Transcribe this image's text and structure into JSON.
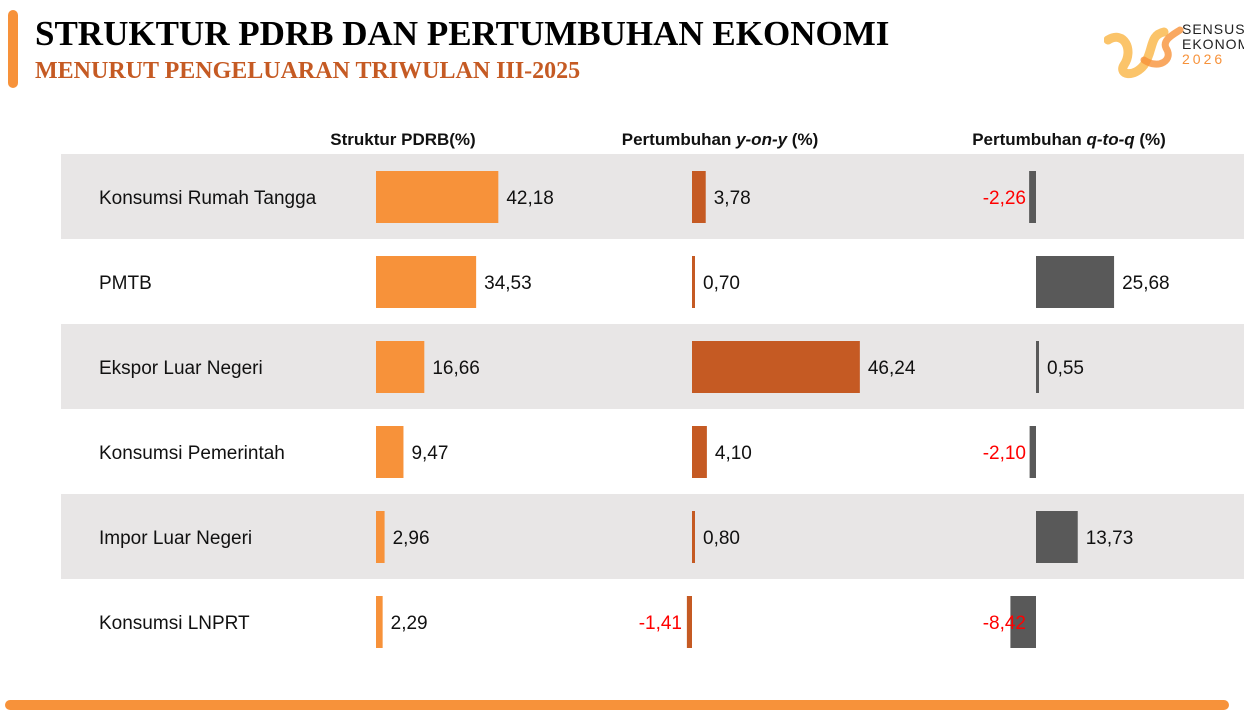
{
  "header": {
    "title": "STRUKTUR PDRB DAN PERTUMBUHAN EKONOMI",
    "subtitle": "MENURUT PENGELUARAN TRIWULAN III-2025"
  },
  "logo": {
    "line1": "SENSUS",
    "line2": "EKONOMI",
    "line3": "2026"
  },
  "colors": {
    "struktur": "#F7923A",
    "yoy": "#C55A23",
    "qtoq": "#595959",
    "negative_label": "#FF0000",
    "stripe": "#E8E6E6",
    "accent": "#F7923A"
  },
  "chart_data": {
    "type": "bar",
    "orientation": "horizontal",
    "categories": [
      "Konsumsi Rumah Tangga",
      "PMTB",
      "Ekspor Luar Negeri",
      "Konsumsi Pemerintah",
      "Impor Luar Negeri",
      "Konsumsi LNPRT"
    ],
    "series": [
      {
        "name": "Struktur PDRB(%)",
        "header_prefix": "Struktur PDRB(%)",
        "header_em": "",
        "header_suffix": "",
        "values": [
          42.18,
          34.53,
          16.66,
          9.47,
          2.96,
          2.29
        ],
        "labels": [
          "42,18",
          "34,53",
          "16,66",
          "9,47",
          "2,96",
          "2,29"
        ]
      },
      {
        "name": "Pertumbuhan y-on-y (%)",
        "header_prefix": "Pertumbuhan ",
        "header_em": "y-on-y",
        "header_suffix": " (%)",
        "values": [
          3.78,
          0.7,
          46.24,
          4.1,
          0.8,
          -1.41
        ],
        "labels": [
          "3,78",
          "0,70",
          "46,24",
          "4,10",
          "0,80",
          "-1,41"
        ]
      },
      {
        "name": "Pertumbuhan q-to-q (%)",
        "header_prefix": "Pertumbuhan ",
        "header_em": "q-to-q",
        "header_suffix": " (%)",
        "values": [
          -2.26,
          25.68,
          0.55,
          -2.1,
          13.73,
          -8.42
        ],
        "labels": [
          "-2,26",
          "25,68",
          "0,55",
          "-2,10",
          "13,73",
          "-8,42"
        ]
      }
    ],
    "grid": false,
    "legend": "none"
  }
}
